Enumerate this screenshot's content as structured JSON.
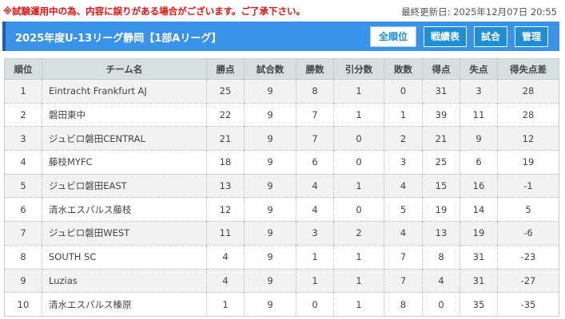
{
  "notice": "※試験運用中の為、内容に誤りがある場合がございます。ご了承下さい。",
  "updated": "最終更新日: 2025年12月07日 20:55",
  "header": {
    "title": "2025年度U-13リーグ静岡【1部Aリーグ】",
    "buttons": [
      "全順位",
      "戦績表",
      "試合",
      "管理"
    ]
  },
  "colors": {
    "accent": "#3993e9",
    "button": "#1e8fd4"
  },
  "table": {
    "columns": [
      "順位",
      "チーム名",
      "勝点",
      "試合数",
      "勝数",
      "引分数",
      "敗数",
      "得点",
      "失点",
      "得失点差"
    ],
    "rows": [
      [
        "1",
        "Eintracht Frankfurt AJ",
        "25",
        "9",
        "8",
        "1",
        "0",
        "31",
        "3",
        "28"
      ],
      [
        "2",
        "磐田東中",
        "22",
        "9",
        "7",
        "1",
        "1",
        "39",
        "11",
        "28"
      ],
      [
        "3",
        "ジュビロ磐田CENTRAL",
        "21",
        "9",
        "7",
        "0",
        "2",
        "21",
        "9",
        "12"
      ],
      [
        "4",
        "藤枝MYFC",
        "18",
        "9",
        "6",
        "0",
        "3",
        "25",
        "6",
        "19"
      ],
      [
        "5",
        "ジュビロ磐田EAST",
        "13",
        "9",
        "4",
        "1",
        "4",
        "15",
        "16",
        "-1"
      ],
      [
        "6",
        "清水エスパルス藤枝",
        "12",
        "9",
        "4",
        "0",
        "5",
        "19",
        "14",
        "5"
      ],
      [
        "7",
        "ジュビロ磐田WEST",
        "11",
        "9",
        "3",
        "2",
        "4",
        "13",
        "19",
        "-6"
      ],
      [
        "8",
        "SOUTH SC",
        "4",
        "9",
        "1",
        "1",
        "7",
        "8",
        "31",
        "-23"
      ],
      [
        "9",
        "Luzias",
        "4",
        "9",
        "1",
        "1",
        "7",
        "4",
        "31",
        "-27"
      ],
      [
        "10",
        "清水エスパルス榛原",
        "1",
        "9",
        "0",
        "1",
        "8",
        "0",
        "35",
        "-35"
      ]
    ]
  }
}
